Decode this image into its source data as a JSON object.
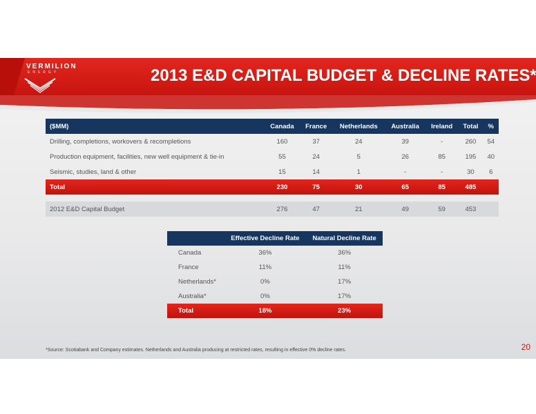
{
  "brand": {
    "logo": "VERMILION",
    "logo_sub": "ENERGY",
    "logo_icon": "vermilion-chevron-logo"
  },
  "slide": {
    "title": "2013 E&D CAPITAL BUDGET & DECLINE RATES*",
    "page_number": "20",
    "footnote": "*Source: Scotiabank and Company estimates. Netherlands and Australia producing at restricted rates, resulting in effective 0% decline rates."
  },
  "colors": {
    "accent_red": "#d21a14",
    "header_navy": "#16355f",
    "prior_row_gray": "#d8d9dc"
  },
  "budget_table": {
    "headers": [
      "($MM)",
      "Canada",
      "France",
      "Netherlands",
      "Australia",
      "Ireland",
      "Total",
      "%"
    ],
    "rows": [
      [
        "Drilling, completions, workovers & recompletions",
        "160",
        "37",
        "24",
        "39",
        "-",
        "260",
        "54"
      ],
      [
        "Production equipment, facilities, new well equipment & tie-in",
        "55",
        "24",
        "5",
        "26",
        "85",
        "195",
        "40"
      ],
      [
        "Seismic, studies, land & other",
        "15",
        "14",
        "1",
        "-",
        "-",
        "30",
        "6"
      ]
    ],
    "total": [
      "Total",
      "230",
      "75",
      "30",
      "65",
      "85",
      "485",
      ""
    ],
    "prior": [
      "2012 E&D Capital Budget",
      "276",
      "47",
      "21",
      "49",
      "59",
      "453",
      ""
    ]
  },
  "decline_table": {
    "headers": [
      "",
      "Effective Decline Rate",
      "Natural Decline Rate"
    ],
    "rows": [
      [
        "Canada",
        "36%",
        "36%"
      ],
      [
        "France",
        "11%",
        "11%"
      ],
      [
        "Netherlands*",
        "0%",
        "17%"
      ],
      [
        "Australia*",
        "0%",
        "17%"
      ]
    ],
    "total": [
      "Total",
      "18%",
      "23%"
    ]
  }
}
